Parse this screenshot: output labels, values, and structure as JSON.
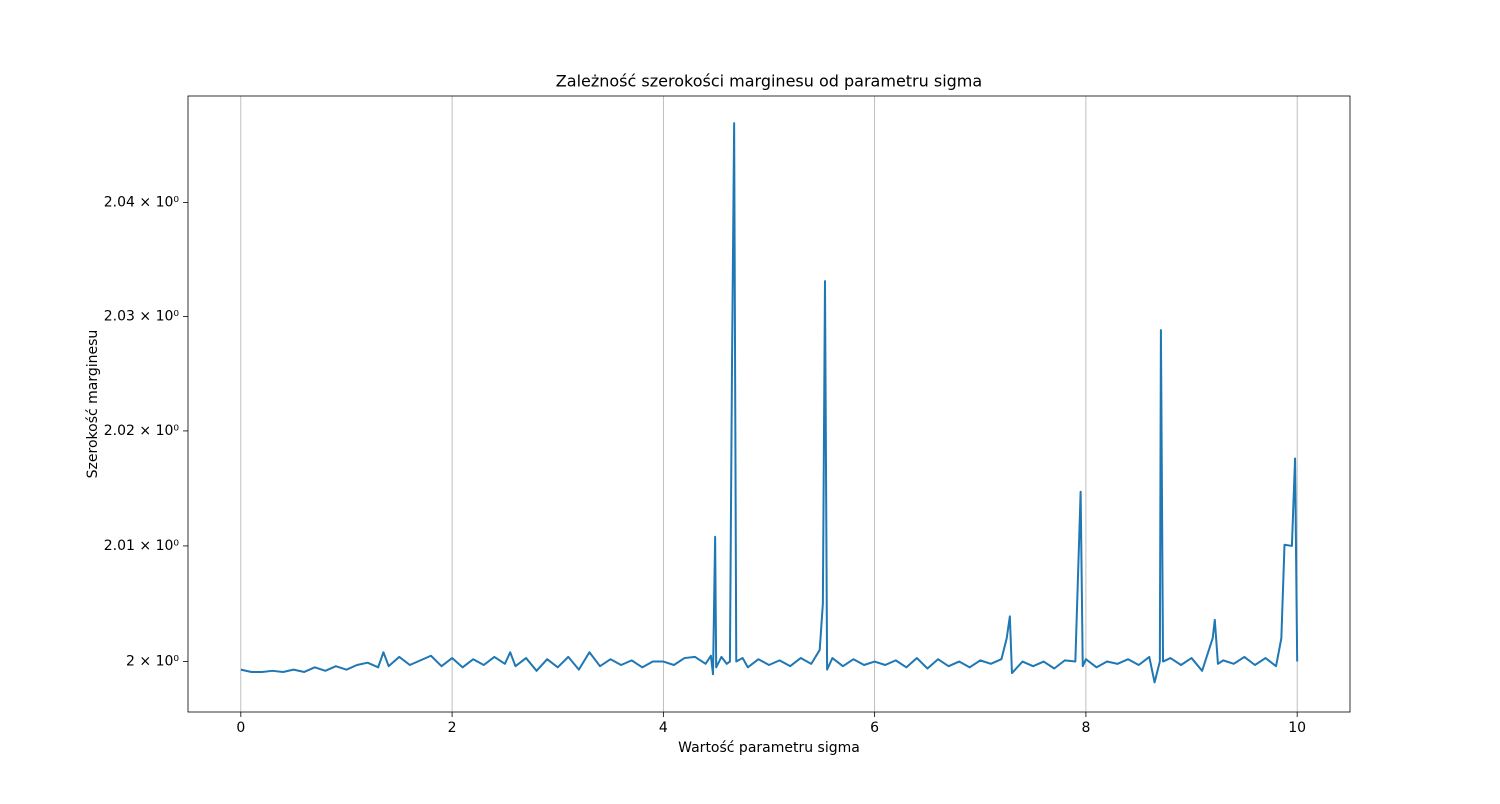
{
  "chart_data": {
    "type": "line",
    "title": "Zależność szerokości marginesu od parametru sigma",
    "xlabel": "Wartość parametru sigma",
    "ylabel": "Szerokość marginesu",
    "yscale": "log",
    "grid": "x",
    "xlim": [
      -0.5,
      10.5
    ],
    "xticks": [
      0,
      2,
      4,
      6,
      8,
      10
    ],
    "ylim": [
      1.99565,
      2.0494
    ],
    "yticks": [
      {
        "value": 2,
        "label": "2 × 10⁰"
      },
      {
        "value": 2.01,
        "label": "2.01 × 10⁰"
      },
      {
        "value": 2.02,
        "label": "2.02 × 10⁰"
      },
      {
        "value": 2.03,
        "label": "2.03 × 10⁰"
      },
      {
        "value": 2.04,
        "label": "2.04 × 10⁰"
      }
    ],
    "x": [
      0.0,
      0.1,
      0.2,
      0.3,
      0.4,
      0.5,
      0.6,
      0.7,
      0.8,
      0.9,
      1.0,
      1.1,
      1.2,
      1.3,
      1.35,
      1.4,
      1.5,
      1.6,
      1.7,
      1.8,
      1.9,
      2.0,
      2.1,
      2.2,
      2.3,
      2.4,
      2.5,
      2.55,
      2.6,
      2.7,
      2.8,
      2.9,
      3.0,
      3.1,
      3.2,
      3.3,
      3.4,
      3.5,
      3.6,
      3.7,
      3.8,
      3.9,
      4.0,
      4.1,
      4.2,
      4.3,
      4.4,
      4.45,
      4.47,
      4.49,
      4.5,
      4.55,
      4.6,
      4.63,
      4.65,
      4.67,
      4.69,
      4.75,
      4.8,
      4.9,
      5.0,
      5.1,
      5.2,
      5.3,
      5.4,
      5.48,
      5.51,
      5.53,
      5.55,
      5.6,
      5.7,
      5.8,
      5.9,
      6.0,
      6.1,
      6.2,
      6.3,
      6.4,
      6.5,
      6.6,
      6.7,
      6.8,
      6.9,
      7.0,
      7.1,
      7.2,
      7.25,
      7.28,
      7.3,
      7.4,
      7.5,
      7.6,
      7.7,
      7.8,
      7.9,
      7.95,
      7.97,
      8.0,
      8.1,
      8.2,
      8.3,
      8.4,
      8.5,
      8.6,
      8.65,
      8.7,
      8.71,
      8.73,
      8.8,
      8.9,
      9.0,
      9.1,
      9.2,
      9.22,
      9.25,
      9.3,
      9.4,
      9.5,
      9.6,
      9.7,
      9.8,
      9.85,
      9.88,
      9.95,
      9.98,
      10.0
    ],
    "series": [
      {
        "color": "#1f77b4",
        "values": [
          1.9993,
          1.9991,
          1.9991,
          1.9992,
          1.9991,
          1.9993,
          1.9991,
          1.9995,
          1.9992,
          1.9996,
          1.9993,
          1.9997,
          1.9999,
          1.9995,
          2.0008,
          1.9996,
          2.0004,
          1.9997,
          2.0001,
          2.0005,
          1.9996,
          2.0003,
          1.9995,
          2.0002,
          1.9997,
          2.0004,
          1.9998,
          2.0008,
          1.9996,
          2.0003,
          1.9992,
          2.0002,
          1.9995,
          2.0004,
          1.9993,
          2.0008,
          1.9996,
          2.0002,
          1.9997,
          2.0001,
          1.9995,
          2.0,
          2.0,
          1.9997,
          2.0003,
          2.0004,
          1.9998,
          2.0005,
          1.9989,
          2.0108,
          1.9995,
          2.0004,
          1.9998,
          2.0,
          2.026,
          2.047,
          2.0,
          2.0003,
          1.9995,
          2.0002,
          1.9997,
          2.0001,
          1.9996,
          2.0003,
          1.9998,
          2.001,
          2.005,
          2.0331,
          1.9993,
          2.0003,
          1.9996,
          2.0002,
          1.9997,
          2.0,
          1.9997,
          2.0001,
          1.9995,
          2.0003,
          1.9994,
          2.0002,
          1.9996,
          2.0,
          1.9995,
          2.0001,
          1.9998,
          2.0002,
          2.002,
          2.0039,
          1.999,
          2.0,
          1.9996,
          2.0,
          1.9994,
          2.0001,
          2.0,
          2.0147,
          1.9996,
          2.0002,
          1.9995,
          2.0,
          1.9998,
          2.0002,
          1.9997,
          2.0004,
          1.9982,
          2.0,
          2.0288,
          2.0,
          2.0003,
          1.9997,
          2.0003,
          1.9992,
          2.002,
          2.0036,
          1.9998,
          2.0001,
          1.9998,
          2.0004,
          1.9997,
          2.0003,
          1.9996,
          2.002,
          2.0101,
          2.01,
          2.0176,
          2.0
        ]
      }
    ]
  }
}
